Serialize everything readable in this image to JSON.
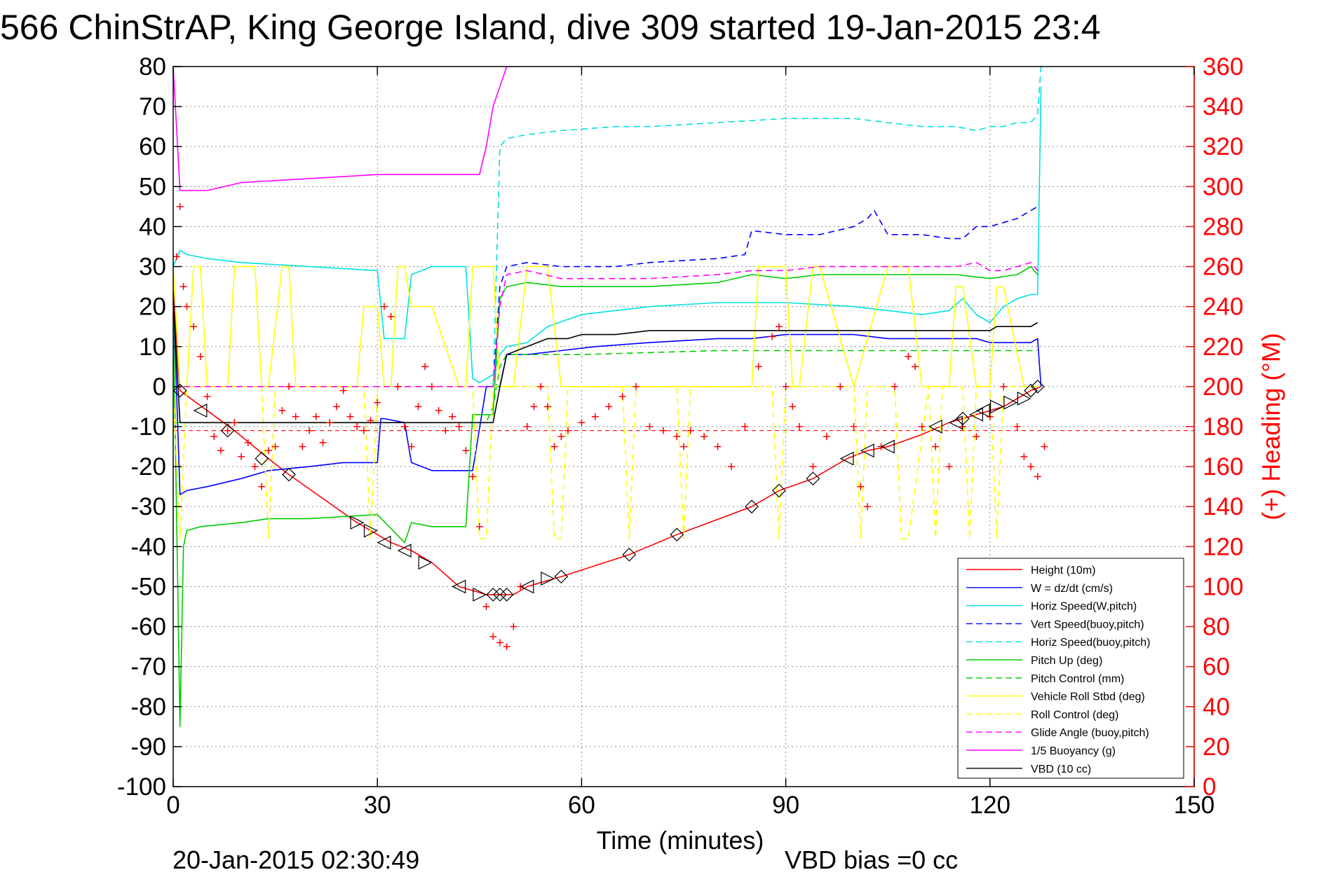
{
  "chart_data": {
    "type": "line",
    "title": "566 ChinStrAP, King George Island, dive 309 started 19-Jan-2015 23:4",
    "xlabel": "Time (minutes)",
    "ylabel": "",
    "y2label": "(+) Heading (°M)",
    "footer_left": "20-Jan-2015 02:30:49",
    "footer_right": "VBD bias =0 cc",
    "xlim": [
      0,
      150
    ],
    "ylim": [
      -100,
      80
    ],
    "y2lim": [
      0,
      360
    ],
    "xticks": [
      "0",
      "30",
      "60",
      "90",
      "120",
      "150"
    ],
    "yticks": [
      "80",
      "70",
      "60",
      "50",
      "40",
      "30",
      "20",
      "10",
      "0",
      "-10",
      "-20",
      "-30",
      "-40",
      "-50",
      "-60",
      "-70",
      "-80",
      "-90",
      "-100"
    ],
    "y2ticks": [
      "360",
      "340",
      "320",
      "300",
      "280",
      "260",
      "240",
      "220",
      "200",
      "180",
      "160",
      "140",
      "120",
      "100",
      "80",
      "60",
      "40",
      "20",
      "0"
    ],
    "grid": true,
    "legend_position": "bottom-right",
    "colors": {
      "axis": "#000000",
      "grid": "#888888",
      "heading": "#ff0000",
      "red": "#ff0000",
      "blue": "#0000ff",
      "cyan": "#00e0e0",
      "green": "#00cc00",
      "yellow": "#ffff00",
      "magenta": "#ff00ff",
      "black": "#000000"
    },
    "series": [
      {
        "name": "Height (10m)",
        "color": "#ff0000",
        "style": "solid",
        "x": [
          0,
          1,
          5,
          9,
          14,
          17,
          27,
          32,
          35,
          38,
          42,
          46,
          48,
          50,
          52,
          56,
          57,
          67,
          74,
          85,
          89,
          94,
          99,
          102,
          105,
          110,
          114,
          116,
          118,
          120,
          122,
          124,
          126,
          127.5
        ],
        "y": [
          24,
          -1,
          -6,
          -11,
          -18,
          -22,
          -34,
          -39,
          -41,
          -44,
          -50,
          -52,
          -52,
          -52,
          -50,
          -48,
          -47.5,
          -42,
          -37,
          -30,
          -26,
          -23,
          -18,
          -16,
          -15,
          -12,
          -9,
          -8,
          -7,
          -6,
          -5,
          -3,
          -1,
          0
        ]
      },
      {
        "name": "W = dz/dt (cm/s)",
        "color": "#0000ff",
        "style": "solid",
        "x": [
          0,
          1,
          2,
          5,
          10,
          14,
          20,
          25,
          30,
          30.5,
          31,
          34,
          35,
          38,
          42,
          44,
          46,
          47,
          48,
          49,
          52,
          57,
          62,
          70,
          80,
          85,
          90,
          95,
          100,
          105,
          110,
          115,
          118,
          120,
          122,
          124,
          126,
          127,
          127.5
        ],
        "y": [
          24,
          -27,
          -26,
          -25,
          -23,
          -21,
          -20,
          -19,
          -19,
          -8,
          -8,
          -9,
          -19,
          -21,
          -21,
          -21,
          0,
          0,
          0,
          8,
          8,
          9,
          10,
          11,
          12,
          12,
          13,
          13,
          13,
          12,
          12,
          12,
          12,
          11,
          11,
          11,
          11,
          12,
          0
        ]
      },
      {
        "name": "Horiz Speed(W,pitch)",
        "color": "#00e0e0",
        "style": "solid",
        "x": [
          0,
          1,
          2,
          5,
          10,
          20,
          30,
          31,
          34,
          35,
          38,
          43,
          44,
          45,
          47,
          48,
          49,
          52,
          55,
          60,
          70,
          80,
          90,
          100,
          105,
          110,
          114,
          116,
          118,
          120,
          122,
          124,
          126,
          127,
          127.5
        ],
        "y": [
          30,
          34,
          33,
          32,
          31,
          30,
          29,
          12,
          12,
          28,
          30,
          30,
          2,
          1,
          3,
          8,
          10,
          11,
          15,
          18,
          20,
          21,
          21,
          20,
          19,
          18,
          19,
          22,
          18,
          16,
          20,
          22,
          23,
          23,
          75
        ]
      },
      {
        "name": "Vert Speed(buoy,pitch)",
        "color": "#0000ff",
        "style": "dashed",
        "x": [
          47,
          48,
          49,
          52,
          57,
          65,
          70,
          80,
          84,
          85,
          90,
          95,
          100,
          102,
          103,
          105,
          110,
          114,
          116,
          118,
          120,
          122,
          124,
          126,
          127
        ],
        "y": [
          0,
          25,
          30,
          31,
          30,
          30,
          31,
          32,
          33,
          39,
          38,
          38,
          40,
          42,
          44,
          38,
          38,
          37,
          37,
          40,
          40,
          41,
          42,
          44,
          45
        ]
      },
      {
        "name": "Horiz Speed(buoy,pitch)",
        "color": "#00e0e0",
        "style": "dashed",
        "x": [
          47,
          48,
          49,
          52,
          57,
          65,
          70,
          80,
          90,
          95,
          100,
          105,
          110,
          115,
          118,
          120,
          122,
          124,
          126,
          127,
          127.5
        ],
        "y": [
          0,
          60,
          62,
          63,
          64,
          65,
          65,
          66,
          67,
          67,
          67,
          66,
          65,
          65,
          64,
          65,
          65,
          66,
          66,
          68,
          80
        ]
      },
      {
        "name": "Pitch Up (deg)",
        "color": "#00cc00",
        "style": "solid",
        "x": [
          0,
          1,
          1.5,
          2,
          4,
          10,
          14,
          20,
          30,
          34,
          35,
          38,
          43,
          44,
          46,
          47,
          48,
          49,
          52,
          57,
          70,
          80,
          85,
          90,
          95,
          100,
          110,
          115,
          120,
          124,
          126,
          127
        ],
        "y": [
          20,
          -85,
          -40,
          -36,
          -35,
          -34,
          -33,
          -33,
          -32,
          -39,
          -34,
          -35,
          -35,
          -7,
          -7,
          -7,
          22,
          25,
          26,
          25,
          25,
          26,
          28,
          27,
          28,
          28,
          28,
          28,
          27,
          28,
          30,
          28
        ]
      },
      {
        "name": "Pitch Control (mm)",
        "color": "#00cc00",
        "style": "dashed",
        "x": [
          0,
          1,
          45,
          46,
          47,
          48,
          49,
          60,
          80,
          100,
          120,
          125,
          127
        ],
        "y": [
          -9,
          -9,
          -9,
          -9,
          -5,
          5,
          8,
          8,
          9,
          9,
          9,
          9,
          9
        ]
      },
      {
        "name": "Vehicle Roll Stbd (deg)",
        "color": "#ffff00",
        "style": "solid",
        "x": [
          0,
          1,
          2,
          3,
          4,
          5,
          8,
          9,
          12,
          13,
          14,
          16,
          17,
          18,
          27,
          28,
          30,
          31,
          32,
          33,
          34,
          35,
          38,
          42,
          43,
          44,
          47,
          48,
          50,
          52,
          55,
          57,
          60,
          65,
          67,
          70,
          74,
          75,
          80,
          85,
          86,
          90,
          91,
          92,
          94,
          95,
          100,
          105,
          108,
          110,
          114,
          115,
          116,
          118,
          120,
          121,
          122,
          125,
          127
        ],
        "y": [
          30,
          0,
          0,
          30,
          30,
          0,
          0,
          30,
          30,
          0,
          0,
          30,
          30,
          0,
          0,
          20,
          20,
          0,
          0,
          30,
          30,
          20,
          20,
          0,
          0,
          30,
          30,
          0,
          0,
          30,
          30,
          0,
          0,
          0,
          0,
          0,
          0,
          0,
          0,
          0,
          30,
          30,
          0,
          0,
          30,
          30,
          0,
          30,
          30,
          0,
          0,
          25,
          25,
          0,
          0,
          25,
          25,
          0,
          0
        ]
      },
      {
        "name": "Roll Control (deg)",
        "color": "#ffff00",
        "style": "dashed",
        "x": [
          0,
          1,
          2,
          13,
          14,
          15,
          28,
          29,
          30,
          44,
          45,
          46,
          47,
          48,
          55,
          56,
          57,
          58,
          66,
          67,
          68,
          74,
          75,
          76,
          88,
          89,
          90,
          100,
          101,
          102,
          106,
          107,
          108,
          111,
          112,
          113,
          116,
          117,
          118,
          120,
          121,
          122,
          127
        ],
        "y": [
          0,
          -38,
          0,
          0,
          -38,
          0,
          0,
          -38,
          0,
          0,
          -38,
          -38,
          0,
          0,
          0,
          -38,
          -38,
          0,
          0,
          -38,
          0,
          0,
          -38,
          0,
          0,
          -38,
          0,
          0,
          -38,
          0,
          0,
          -38,
          -38,
          0,
          -38,
          0,
          0,
          -38,
          0,
          0,
          -38,
          0,
          0
        ]
      },
      {
        "name": "Glide Angle (buoy,pitch)",
        "color": "#ff00ff",
        "style": "dashed",
        "x": [
          0,
          5,
          10,
          20,
          30,
          40,
          45,
          46,
          47,
          48,
          49,
          52,
          57,
          70,
          80,
          85,
          90,
          95,
          100,
          105,
          110,
          115,
          118,
          120,
          122,
          124,
          126,
          127
        ],
        "y": [
          0,
          0,
          0,
          0,
          0,
          0,
          0,
          0,
          0,
          20,
          28,
          29,
          27,
          27,
          28,
          29,
          29,
          30,
          30,
          30,
          30,
          30,
          31,
          29,
          29,
          30,
          31,
          29
        ]
      },
      {
        "name": "1/5 Buoyancy (g)",
        "color": "#ff00ff",
        "style": "solid",
        "x": [
          0,
          1,
          5,
          10,
          20,
          30,
          35,
          40,
          45,
          46,
          47,
          48,
          49,
          50
        ],
        "y": [
          80,
          49,
          49,
          51,
          52,
          53,
          53,
          53,
          53,
          60,
          70,
          75,
          80,
          80
        ]
      },
      {
        "name": "VBD (10 cc)",
        "color": "#000000",
        "style": "solid",
        "x": [
          0,
          1,
          45,
          47,
          48,
          49,
          52,
          55,
          58,
          60,
          62,
          65,
          70,
          80,
          100,
          115,
          120,
          121,
          126,
          127
        ],
        "y": [
          22,
          -9,
          -9,
          -9,
          0,
          8,
          10,
          12,
          12,
          13,
          13,
          13,
          14,
          14,
          14,
          14,
          14,
          15,
          15,
          16
        ]
      }
    ],
    "heading": {
      "name": "(+) Heading",
      "axis": "right",
      "marker": "+",
      "color": "#ff0000",
      "x": [
        0.5,
        1,
        1.5,
        2,
        3,
        4,
        5,
        6,
        7,
        8,
        9,
        10,
        11,
        12,
        13,
        14,
        15,
        16,
        17,
        18,
        19,
        20,
        21,
        22,
        23,
        24,
        25,
        26,
        27,
        28,
        29,
        30,
        31,
        32,
        33,
        34,
        35,
        36,
        37,
        38,
        39,
        40,
        41,
        42,
        43,
        44,
        45,
        46,
        47,
        48,
        49,
        50,
        51,
        52,
        53,
        54,
        55,
        56,
        57,
        58,
        60,
        62,
        64,
        66,
        68,
        70,
        72,
        74,
        75,
        76,
        78,
        80,
        82,
        84,
        86,
        88,
        89,
        90,
        91,
        92,
        94,
        96,
        98,
        100,
        101,
        102,
        104,
        106,
        108,
        109,
        110,
        112,
        114,
        116,
        118,
        120,
        122,
        124,
        125,
        126,
        127,
        128
      ],
      "y": [
        265,
        290,
        250,
        240,
        230,
        215,
        195,
        175,
        168,
        178,
        182,
        165,
        172,
        160,
        150,
        168,
        170,
        188,
        200,
        185,
        170,
        178,
        185,
        172,
        182,
        190,
        198,
        185,
        180,
        178,
        183,
        192,
        240,
        235,
        200,
        180,
        170,
        190,
        210,
        200,
        188,
        178,
        185,
        180,
        168,
        155,
        130,
        90,
        75,
        72,
        70,
        80,
        100,
        180,
        190,
        200,
        190,
        170,
        175,
        178,
        182,
        185,
        190,
        195,
        200,
        180,
        178,
        175,
        170,
        178,
        175,
        170,
        160,
        180,
        210,
        225,
        230,
        200,
        190,
        180,
        160,
        175,
        200,
        180,
        150,
        140,
        170,
        200,
        215,
        210,
        180,
        170,
        160,
        180,
        175,
        185,
        200,
        180,
        165,
        160,
        155,
        170
      ]
    },
    "direction_markers": {
      "name": "Height (10m) triangle markers",
      "x": [
        1,
        4,
        8,
        13,
        17,
        27,
        29,
        31,
        34,
        37,
        42,
        45,
        47,
        48,
        49,
        52,
        55,
        57,
        67,
        74,
        85,
        89,
        94,
        99,
        102,
        105,
        112,
        115,
        116,
        118,
        119,
        121,
        123,
        125,
        126,
        127
      ],
      "y": [
        -1,
        -6,
        -11,
        -18,
        -22,
        -34,
        -36,
        -39,
        -41,
        -44,
        -50,
        -52,
        -52,
        -52,
        -52,
        -50,
        -48,
        -47.5,
        -42,
        -37,
        -30,
        -26,
        -23,
        -18,
        -16,
        -15,
        -10,
        -9,
        -8,
        -7,
        -6,
        -5,
        -4,
        -3,
        -1,
        0
      ],
      "dir": [
        "n",
        "l",
        "n",
        "n",
        "n",
        "r",
        "r",
        "l",
        "l",
        "r",
        "l",
        "r",
        "n",
        "n",
        "n",
        "l",
        "r",
        "n",
        "n",
        "n",
        "n",
        "n",
        "n",
        "l",
        "l",
        "l",
        "l",
        "l",
        "n",
        "l",
        "l",
        "r",
        "r",
        "r",
        "n",
        "n"
      ]
    },
    "reference_line": {
      "color": "#ff0000",
      "style": "dashed",
      "y": -11
    }
  }
}
